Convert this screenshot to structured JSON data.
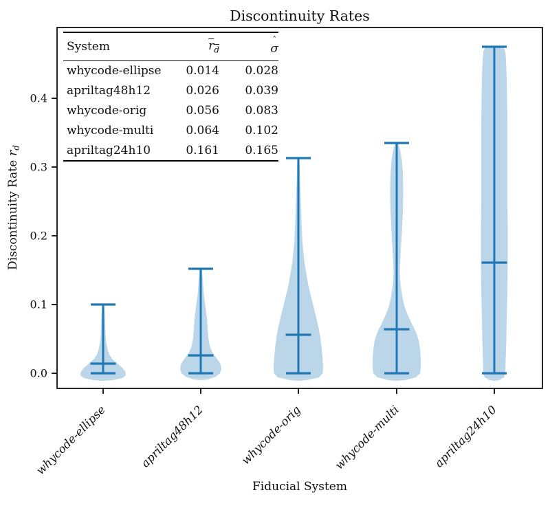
{
  "title": "Discontinuity Rates",
  "axes": {
    "xlabel": "Fiducial System",
    "ylabel_text": "Discontinuity Rate",
    "ylabel_var": "r",
    "ylabel_var_sub": "d",
    "y_ticks": [
      {
        "label": "0.0",
        "value": 0.0
      },
      {
        "label": "0.1",
        "value": 0.1
      },
      {
        "label": "0.2",
        "value": 0.2
      },
      {
        "label": "0.3",
        "value": 0.3
      },
      {
        "label": "0.4",
        "value": 0.4
      }
    ]
  },
  "table": {
    "col_system": "System",
    "col_rd": {
      "base": "r",
      "sub": "d"
    },
    "col_sigma": {
      "hat": "ˆ",
      "base": "σ"
    },
    "rows": [
      {
        "system": "whycode-ellipse",
        "rd": "0.014",
        "sigma": "0.028"
      },
      {
        "system": "apriltag48h12",
        "rd": "0.026",
        "sigma": "0.039"
      },
      {
        "system": "whycode-orig",
        "rd": "0.056",
        "sigma": "0.083"
      },
      {
        "system": "whycode-multi",
        "rd": "0.064",
        "sigma": "0.102"
      },
      {
        "system": "apriltag24h10",
        "rd": "0.161",
        "sigma": "0.165"
      }
    ]
  },
  "chart_data": {
    "type": "violin",
    "title": "Discontinuity Rates",
    "xlabel": "Fiducial System",
    "ylabel": "Discontinuity Rate r_d",
    "ylim": [
      -0.022,
      0.503
    ],
    "categories": [
      "whycode-ellipse",
      "apriltag48h12",
      "whycode-orig",
      "whycode-multi",
      "apriltag24h10"
    ],
    "series": [
      {
        "name": "whycode-ellipse",
        "mean": 0.014,
        "sigma": 0.028,
        "min": 0.0,
        "max": 0.1,
        "profile": [
          [
            0.1,
            1.5
          ],
          [
            0.085,
            2.5
          ],
          [
            0.07,
            3
          ],
          [
            0.055,
            3.5
          ],
          [
            0.045,
            4.5
          ],
          [
            0.035,
            6.5
          ],
          [
            0.027,
            9
          ],
          [
            0.02,
            14
          ],
          [
            0.014,
            21
          ],
          [
            0.008,
            28
          ],
          [
            0.002,
            32.5
          ],
          [
            -0.003,
            33
          ],
          [
            -0.007,
            28
          ],
          [
            -0.01,
            14
          ],
          [
            -0.011,
            0
          ]
        ]
      },
      {
        "name": "apriltag48h12",
        "mean": 0.026,
        "sigma": 0.039,
        "min": 0.0,
        "max": 0.152,
        "profile": [
          [
            0.152,
            1.5
          ],
          [
            0.135,
            3
          ],
          [
            0.115,
            4.5
          ],
          [
            0.095,
            7
          ],
          [
            0.08,
            9
          ],
          [
            0.065,
            10
          ],
          [
            0.052,
            11
          ],
          [
            0.04,
            13
          ],
          [
            0.03,
            17
          ],
          [
            0.022,
            23
          ],
          [
            0.014,
            28.5
          ],
          [
            0.006,
            30
          ],
          [
            0.0,
            28
          ],
          [
            -0.005,
            22
          ],
          [
            -0.009,
            10
          ],
          [
            -0.01,
            0
          ]
        ]
      },
      {
        "name": "whycode-orig",
        "mean": 0.056,
        "sigma": 0.083,
        "min": 0.0,
        "max": 0.313,
        "profile": [
          [
            0.313,
            1.5
          ],
          [
            0.28,
            2.5
          ],
          [
            0.25,
            3.5
          ],
          [
            0.22,
            4.5
          ],
          [
            0.19,
            6
          ],
          [
            0.16,
            9
          ],
          [
            0.13,
            14
          ],
          [
            0.105,
            20
          ],
          [
            0.085,
            25
          ],
          [
            0.068,
            29
          ],
          [
            0.055,
            31.5
          ],
          [
            0.04,
            33.5
          ],
          [
            0.025,
            35
          ],
          [
            0.01,
            36
          ],
          [
            0.0,
            35.5
          ],
          [
            -0.006,
            30
          ],
          [
            -0.01,
            12
          ],
          [
            -0.011,
            0
          ]
        ]
      },
      {
        "name": "whycode-multi",
        "mean": 0.064,
        "sigma": 0.102,
        "min": 0.0,
        "max": 0.335,
        "profile": [
          [
            0.335,
            2
          ],
          [
            0.325,
            5
          ],
          [
            0.31,
            7.5
          ],
          [
            0.29,
            9
          ],
          [
            0.265,
            9.5
          ],
          [
            0.235,
            9
          ],
          [
            0.205,
            7.5
          ],
          [
            0.18,
            6
          ],
          [
            0.16,
            5
          ],
          [
            0.148,
            4.5
          ],
          [
            0.13,
            5.5
          ],
          [
            0.112,
            8
          ],
          [
            0.098,
            11
          ],
          [
            0.085,
            16
          ],
          [
            0.072,
            22
          ],
          [
            0.06,
            28
          ],
          [
            0.048,
            32
          ],
          [
            0.035,
            34
          ],
          [
            0.02,
            35
          ],
          [
            0.008,
            35
          ],
          [
            0.0,
            34
          ],
          [
            -0.006,
            28
          ],
          [
            -0.01,
            12
          ],
          [
            -0.011,
            0
          ]
        ]
      },
      {
        "name": "apriltag24h10",
        "mean": 0.161,
        "sigma": 0.165,
        "min": 0.0,
        "max": 0.475,
        "profile": [
          [
            0.475,
            13
          ],
          [
            0.468,
            16
          ],
          [
            0.455,
            17
          ],
          [
            0.43,
            18
          ],
          [
            0.4,
            18.5
          ],
          [
            0.36,
            19
          ],
          [
            0.31,
            19
          ],
          [
            0.26,
            19
          ],
          [
            0.21,
            19.5
          ],
          [
            0.161,
            19.5
          ],
          [
            0.12,
            19
          ],
          [
            0.08,
            18
          ],
          [
            0.05,
            17.5
          ],
          [
            0.02,
            16.5
          ],
          [
            0.0,
            16
          ],
          [
            -0.006,
            14
          ],
          [
            -0.01,
            7
          ],
          [
            -0.011,
            0
          ]
        ]
      }
    ],
    "colors": {
      "line": "#1f77b4",
      "fill": "rgba(31,119,180,0.30)",
      "frame": "#000000"
    }
  }
}
